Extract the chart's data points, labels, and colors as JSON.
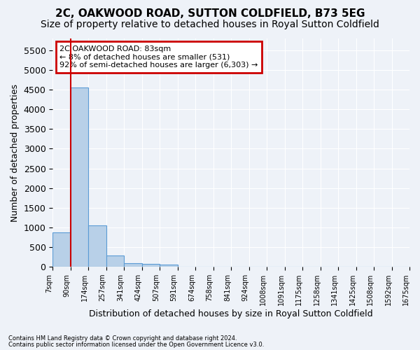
{
  "title": "2C, OAKWOOD ROAD, SUTTON COLDFIELD, B73 5EG",
  "subtitle": "Size of property relative to detached houses in Royal Sutton Coldfield",
  "xlabel": "Distribution of detached houses by size in Royal Sutton Coldfield",
  "ylabel": "Number of detached properties",
  "footnote1": "Contains HM Land Registry data © Crown copyright and database right 2024.",
  "footnote2": "Contains public sector information licensed under the Open Government Licence v3.0.",
  "bin_labels": [
    "7sqm",
    "90sqm",
    "174sqm",
    "257sqm",
    "341sqm",
    "424sqm",
    "507sqm",
    "591sqm",
    "674sqm",
    "758sqm",
    "841sqm",
    "924sqm",
    "1008sqm",
    "1091sqm",
    "1175sqm",
    "1258sqm",
    "1341sqm",
    "1425sqm",
    "1508sqm",
    "1592sqm",
    "1675sqm"
  ],
  "bar_values": [
    870,
    4560,
    1060,
    290,
    90,
    80,
    60,
    0,
    0,
    0,
    0,
    0,
    0,
    0,
    0,
    0,
    0,
    0,
    0,
    0
  ],
  "bar_color": "#b8d0e8",
  "bar_edgecolor": "#5b9bd5",
  "property_line_x": 1,
  "property_line_color": "#cc0000",
  "ylim_max": 5800,
  "yticks": [
    0,
    500,
    1000,
    1500,
    2000,
    2500,
    3000,
    3500,
    4000,
    4500,
    5000,
    5500
  ],
  "annotation_line1": "2C OAKWOOD ROAD: 83sqm",
  "annotation_line2": "← 8% of detached houses are smaller (531)",
  "annotation_line3": "92% of semi-detached houses are larger (6,303) →",
  "annotation_color": "#cc0000",
  "background_color": "#eef2f8",
  "grid_color": "#ffffff",
  "title_fontsize": 11,
  "subtitle_fontsize": 10,
  "axis_fontsize": 9,
  "tick_fontsize": 7
}
